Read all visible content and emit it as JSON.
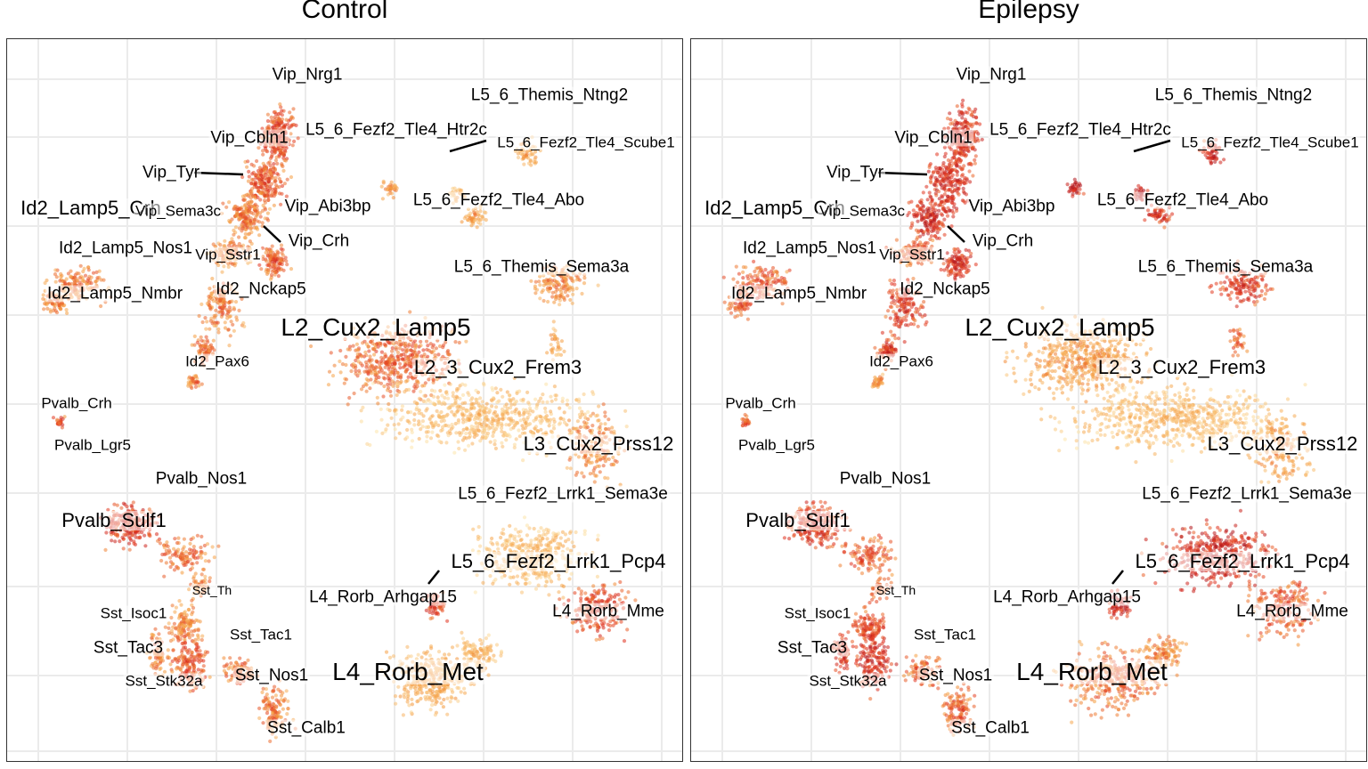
{
  "panels": [
    {
      "title": "Control",
      "mode": "control"
    },
    {
      "title": "Epilepsy",
      "mode": "epilepsy"
    }
  ],
  "colors": {
    "low": "#fde8b0",
    "mid": "#f49a3c",
    "high": "#e0301e",
    "max": "#a8101c",
    "grid": "#ebebeb"
  },
  "chart_data": {
    "type": "scatter",
    "description_type": "umap-density",
    "grid": true,
    "legend": "none",
    "labels": [
      {
        "text": "Vip_Nrg1",
        "size": "md"
      },
      {
        "text": "Vip_Cbln1",
        "size": "md"
      },
      {
        "text": "Vip_Tyr",
        "size": "md"
      },
      {
        "text": "Id2_Lamp5_Crh",
        "size": "lg"
      },
      {
        "text": "Vip_Sema3c",
        "size": "sm"
      },
      {
        "text": "Vip_Abi3bp",
        "size": "md"
      },
      {
        "text": "Vip_Crh",
        "size": "md"
      },
      {
        "text": "Id2_Lamp5_Nos1",
        "size": "md"
      },
      {
        "text": "Vip_Sstr1",
        "size": "sm"
      },
      {
        "text": "Id2_Lamp5_Nmbr",
        "size": "md"
      },
      {
        "text": "Id2_Nckap5",
        "size": "md"
      },
      {
        "text": "Id2_Pax6",
        "size": "sm"
      },
      {
        "text": "L5_6_Themis_Ntng2",
        "size": "md"
      },
      {
        "text": "L5_6_Fezf2_Tle4_Htr2c",
        "size": "md"
      },
      {
        "text": "L5_6_Fezf2_Tle4_Scube1",
        "size": "sm"
      },
      {
        "text": "L5_6_Fezf2_Tle4_Abo",
        "size": "md"
      },
      {
        "text": "L5_6_Themis_Sema3a",
        "size": "md"
      },
      {
        "text": "L2_Cux2_Lamp5",
        "size": "xl"
      },
      {
        "text": "L2_3_Cux2_Frem3",
        "size": "lg"
      },
      {
        "text": "L3_Cux2_Prss12",
        "size": "lg"
      },
      {
        "text": "L5_6_Fezf2_Lrrk1_Sema3e",
        "size": "md"
      },
      {
        "text": "L5_6_Fezf2_Lrrk1_Pcp4",
        "size": "lg"
      },
      {
        "text": "L4_Rorb_Arhgap15",
        "size": "md"
      },
      {
        "text": "L4_Rorb_Mme",
        "size": "md"
      },
      {
        "text": "L4_Rorb_Met",
        "size": "xl"
      },
      {
        "text": "Pvalb_Crh",
        "size": "sm"
      },
      {
        "text": "Pvalb_Lgr5",
        "size": "sm"
      },
      {
        "text": "Pvalb_Nos1",
        "size": "md"
      },
      {
        "text": "Pvalb_Sulf1",
        "size": "lg"
      },
      {
        "text": "Sst_Th",
        "size": "xs"
      },
      {
        "text": "Sst_Isoc1",
        "size": "sm"
      },
      {
        "text": "Sst_Tac3",
        "size": "md"
      },
      {
        "text": "Sst_Tac1",
        "size": "sm"
      },
      {
        "text": "Sst_Stk32a",
        "size": "sm"
      },
      {
        "text": "Sst_Nos1",
        "size": "md"
      },
      {
        "text": "Sst_Calb1",
        "size": "md"
      }
    ]
  }
}
